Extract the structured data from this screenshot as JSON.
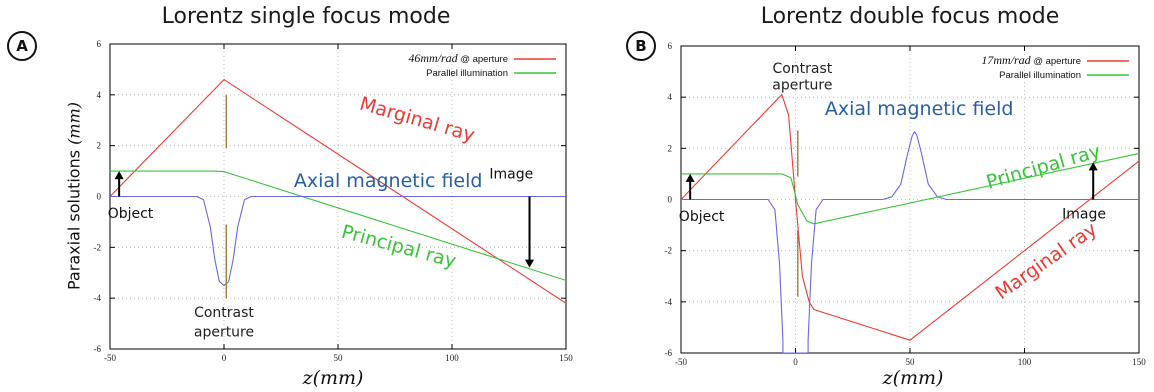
{
  "panels": [
    {
      "badge": "A",
      "title": "Lorentz single focus mode",
      "xlabel": "z(mm)",
      "ylabel": "Paraxial solutions (mm)",
      "ylabel_main": "Paraxial solutions ",
      "ylabel_unit": "(mm)"
    },
    {
      "badge": "B",
      "title": "Lorentz double focus mode",
      "xlabel": "z(mm)"
    }
  ],
  "colors": {
    "marginal": "#ee3a32",
    "principal": "#39c43a",
    "field": "#6868e8",
    "field_label": "#2a5fa3",
    "aperture": "#a67c2e",
    "grid": "#b4b4b4"
  },
  "chart_data": [
    {
      "type": "line",
      "title": "Lorentz single focus mode",
      "xlabel": "z(mm)",
      "ylabel": "Paraxial solutions (mm)",
      "xlim": [
        -50,
        150
      ],
      "ylim": [
        -6,
        6
      ],
      "xticks": [
        -50,
        0,
        50,
        100,
        150
      ],
      "yticks": [
        -6,
        -4,
        -2,
        0,
        2,
        4,
        6
      ],
      "grid": true,
      "legend_position": "top-right",
      "legend": [
        {
          "math": "46mm/rad",
          "suffix": " @ aperture",
          "color": "#ee3a32"
        },
        {
          "math": "",
          "suffix": "Parallel illumination",
          "color": "#39c43a"
        }
      ],
      "series": [
        {
          "color": "#ee3a32",
          "x": [
            -50,
            0,
            150
          ],
          "y": [
            0,
            4.6,
            -4.2
          ]
        },
        {
          "color": "#39c43a",
          "x": [
            -50,
            -5,
            0,
            150
          ],
          "y": [
            1.0,
            1.0,
            0.98,
            -3.3
          ]
        },
        {
          "color": "#6868e8",
          "x": [
            -50,
            -12,
            -9,
            -6,
            -4,
            -2,
            0,
            2,
            4,
            6,
            9,
            12,
            150
          ],
          "y": [
            0,
            0,
            -0.12,
            -1.2,
            -2.5,
            -3.35,
            -3.5,
            -3.35,
            -2.5,
            -1.2,
            -0.12,
            0,
            0
          ]
        }
      ],
      "aperture": {
        "x": 1,
        "segments": [
          [
            1.9,
            4.0
          ],
          [
            -4.0,
            -1.1
          ]
        ]
      },
      "arrows": [
        {
          "x": -46,
          "from": 0,
          "to": 1.0
        },
        {
          "x": 134,
          "from": 0,
          "to": -2.8
        }
      ],
      "annotations": [
        {
          "text": "Marginal ray",
          "x": 84,
          "y": 2.8,
          "color": "#ee3a32",
          "rotate": 16,
          "size": 19
        },
        {
          "text": "Principal ray",
          "x": 76,
          "y": -2.2,
          "color": "#39c43a",
          "rotate": 15,
          "size": 19
        },
        {
          "text": "Axial magnetic field",
          "x": 72,
          "y": 0.38,
          "color": "#2a5fa3",
          "rotate": 0,
          "size": 19
        },
        {
          "text": "Image",
          "x": 126,
          "y": 0.7,
          "color": "#111111",
          "rotate": 0,
          "size": 14
        },
        {
          "text": "Object",
          "x": -41,
          "y": -0.85,
          "color": "#111111",
          "rotate": 0,
          "size": 14
        },
        {
          "text": "Contrast",
          "x": 0,
          "y": -4.75,
          "color": "#222222",
          "rotate": 0,
          "size": 14
        },
        {
          "text": "aperture",
          "x": 0,
          "y": -5.5,
          "color": "#222222",
          "rotate": 0,
          "size": 14
        }
      ]
    },
    {
      "type": "line",
      "title": "Lorentz double focus mode",
      "xlabel": "z(mm)",
      "ylabel": "",
      "xlim": [
        -50,
        150
      ],
      "ylim": [
        -6,
        6
      ],
      "xticks": [
        -50,
        0,
        50,
        100,
        150
      ],
      "yticks": [
        -6,
        -4,
        -2,
        0,
        2,
        4,
        6
      ],
      "grid": true,
      "legend_position": "top-right",
      "legend": [
        {
          "math": "17mm/rad",
          "suffix": " @ aperture",
          "color": "#ee3a32"
        },
        {
          "math": "",
          "suffix": "Parallel illumination",
          "color": "#39c43a"
        }
      ],
      "series": [
        {
          "color": "#ee3a32",
          "x": [
            -50,
            -6,
            -3,
            0,
            3,
            6,
            8,
            50,
            150
          ],
          "y": [
            0,
            4.1,
            3.3,
            0,
            -3.0,
            -4.0,
            -4.3,
            -5.5,
            1.5
          ]
        },
        {
          "color": "#39c43a",
          "x": [
            -50,
            -6,
            -2,
            1,
            5,
            8,
            150
          ],
          "y": [
            1.0,
            1.0,
            0.85,
            -0.2,
            -0.85,
            -0.95,
            1.8
          ]
        },
        {
          "color": "#6868e8",
          "x": [
            -50,
            -12,
            -9,
            -7,
            -5.5,
            -5.5,
            -5,
            -3,
            0,
            3,
            5,
            5.5,
            5.5,
            7,
            9,
            12,
            38,
            42,
            46,
            49,
            51,
            52,
            53,
            55,
            58,
            62,
            66,
            150
          ],
          "y": [
            0,
            0,
            -0.4,
            -2.5,
            -5.5,
            -6,
            -6,
            -6,
            -6,
            -6,
            -6,
            -6,
            -5.5,
            -2.5,
            -0.4,
            0,
            0,
            0.1,
            0.6,
            1.8,
            2.5,
            2.65,
            2.5,
            1.8,
            0.6,
            0.1,
            0,
            0
          ]
        }
      ],
      "aperture": {
        "x": 1,
        "segments": [
          [
            0.9,
            2.7
          ],
          [
            -3.8,
            -1.2
          ]
        ]
      },
      "arrows": [
        {
          "x": -46,
          "from": 0,
          "to": 1.0
        },
        {
          "x": 130,
          "from": 0,
          "to": 1.45
        }
      ],
      "annotations": [
        {
          "text": "Contrast",
          "x": 3,
          "y": 4.95,
          "color": "#222222",
          "rotate": 0,
          "size": 14
        },
        {
          "text": "aperture",
          "x": 3,
          "y": 4.3,
          "color": "#222222",
          "rotate": 0,
          "size": 14
        },
        {
          "text": "Axial magnetic field",
          "x": 54,
          "y": 3.3,
          "color": "#2a5fa3",
          "rotate": 0,
          "size": 19
        },
        {
          "text": "Principal ray",
          "x": 109,
          "y": 1.05,
          "color": "#39c43a",
          "rotate": -16,
          "size": 19
        },
        {
          "text": "Marginal ray",
          "x": 111,
          "y": -2.6,
          "color": "#ee3a32",
          "rotate": -35,
          "size": 19
        },
        {
          "text": "Object",
          "x": -41,
          "y": -0.85,
          "color": "#111111",
          "rotate": 0,
          "size": 14
        },
        {
          "text": "Image",
          "x": 126,
          "y": -0.75,
          "color": "#111111",
          "rotate": 0,
          "size": 14
        }
      ]
    }
  ]
}
